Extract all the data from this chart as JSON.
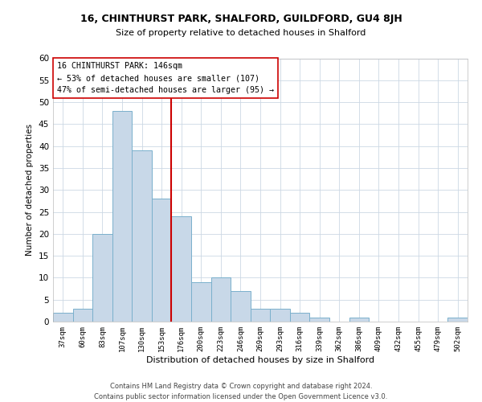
{
  "title": "16, CHINTHURST PARK, SHALFORD, GUILDFORD, GU4 8JH",
  "subtitle": "Size of property relative to detached houses in Shalford",
  "xlabel": "Distribution of detached houses by size in Shalford",
  "ylabel": "Number of detached properties",
  "bar_color": "#c8d8e8",
  "bar_edge_color": "#7ab0cc",
  "bin_labels": [
    "37sqm",
    "60sqm",
    "83sqm",
    "107sqm",
    "130sqm",
    "153sqm",
    "176sqm",
    "200sqm",
    "223sqm",
    "246sqm",
    "269sqm",
    "293sqm",
    "316sqm",
    "339sqm",
    "362sqm",
    "386sqm",
    "409sqm",
    "432sqm",
    "455sqm",
    "479sqm",
    "502sqm"
  ],
  "bar_heights": [
    2,
    3,
    20,
    48,
    39,
    28,
    24,
    9,
    10,
    7,
    3,
    3,
    2,
    1,
    0,
    1,
    0,
    0,
    0,
    0,
    1
  ],
  "vline_x": 5.5,
  "vline_color": "#cc0000",
  "annotation_line1": "16 CHINTHURST PARK: 146sqm",
  "annotation_line2": "← 53% of detached houses are smaller (107)",
  "annotation_line3": "47% of semi-detached houses are larger (95) →",
  "annotation_box_color": "#ffffff",
  "annotation_box_edge": "#cc0000",
  "ylim": [
    0,
    60
  ],
  "yticks": [
    0,
    5,
    10,
    15,
    20,
    25,
    30,
    35,
    40,
    45,
    50,
    55,
    60
  ],
  "footer_line1": "Contains HM Land Registry data © Crown copyright and database right 2024.",
  "footer_line2": "Contains public sector information licensed under the Open Government Licence v3.0.",
  "background_color": "#ffffff",
  "grid_color": "#ccd8e4"
}
